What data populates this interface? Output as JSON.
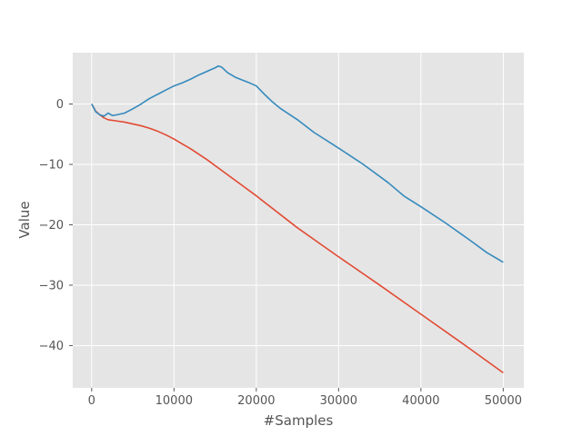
{
  "chart_data": {
    "type": "line",
    "title": "",
    "xlabel": "#Samples",
    "ylabel": "Value",
    "xlim": [
      -2300,
      52500
    ],
    "ylim": [
      -47,
      8.5
    ],
    "xticks": [
      0,
      10000,
      20000,
      30000,
      40000,
      50000
    ],
    "xtick_labels": [
      "0",
      "10000",
      "20000",
      "30000",
      "40000",
      "50000"
    ],
    "yticks": [
      0,
      -10,
      -20,
      -30,
      -40
    ],
    "ytick_labels": [
      "0",
      "−10",
      "−20",
      "−30",
      "−40"
    ],
    "grid": true,
    "style": "ggplot",
    "series": [
      {
        "color": "#e24a33",
        "x": [
          0,
          500,
          1000,
          1500,
          2000,
          3000,
          4000,
          5000,
          6000,
          7000,
          8000,
          9000,
          10000,
          11000,
          12000,
          14000,
          16000,
          18000,
          20000,
          25000,
          30000,
          35000,
          40000,
          45000,
          50000
        ],
        "y": [
          0,
          -1.2,
          -1.8,
          -2.3,
          -2.6,
          -2.8,
          -3.0,
          -3.3,
          -3.6,
          -4.0,
          -4.5,
          -5.1,
          -5.8,
          -6.6,
          -7.4,
          -9.2,
          -11.2,
          -13.2,
          -15.2,
          -20.5,
          -25.3,
          -30.0,
          -34.8,
          -39.6,
          -44.5
        ]
      },
      {
        "color": "#348abd",
        "x": [
          0,
          500,
          1000,
          1500,
          2000,
          2500,
          3000,
          4000,
          5000,
          6000,
          7000,
          8000,
          9000,
          10000,
          11000,
          12000,
          13000,
          14000,
          15000,
          15400,
          15800,
          16500,
          17500,
          19000,
          20000,
          21000,
          22000,
          23000,
          25000,
          27000,
          30000,
          33000,
          36000,
          38000,
          40000,
          43000,
          46000,
          48000,
          50000
        ],
        "y": [
          0,
          -1.3,
          -1.8,
          -2.0,
          -1.5,
          -1.9,
          -1.8,
          -1.5,
          -0.8,
          0.0,
          0.9,
          1.6,
          2.3,
          3.0,
          3.5,
          4.1,
          4.8,
          5.4,
          6.0,
          6.3,
          6.1,
          5.2,
          4.4,
          3.6,
          3.0,
          1.6,
          0.3,
          -0.8,
          -2.6,
          -4.7,
          -7.3,
          -10.0,
          -13.0,
          -15.3,
          -17.0,
          -19.7,
          -22.6,
          -24.6,
          -26.2
        ]
      }
    ]
  }
}
